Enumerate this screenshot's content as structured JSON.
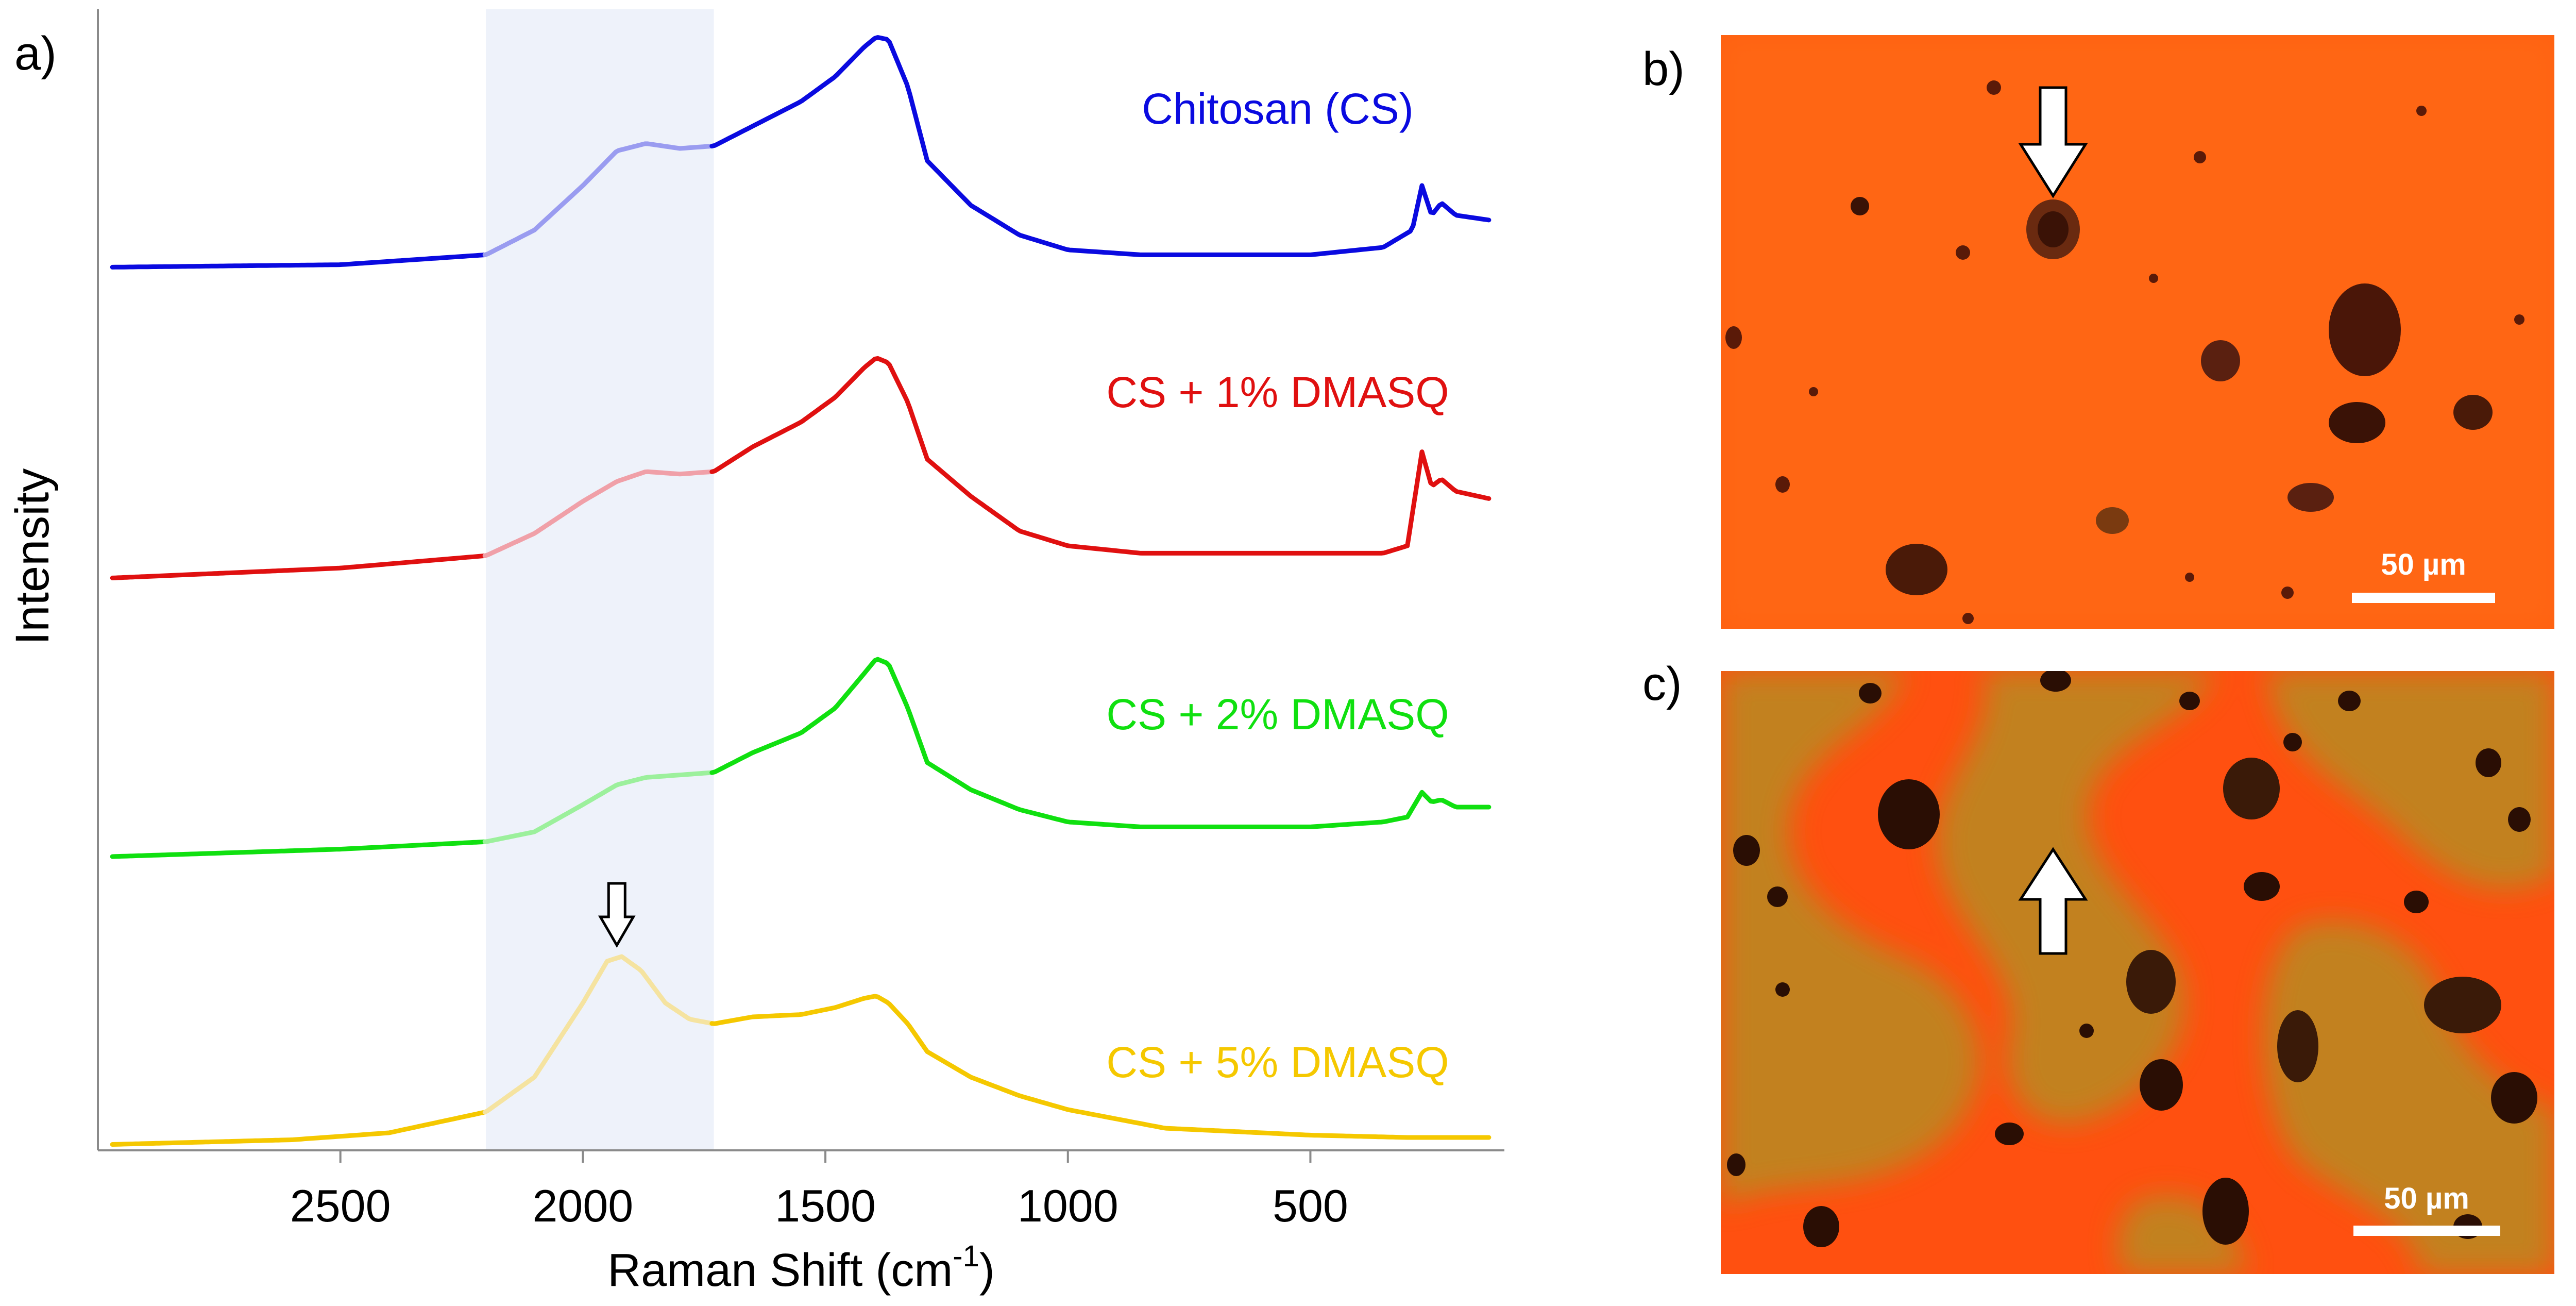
{
  "panel_labels": {
    "a": "a)",
    "b": "b)",
    "c": "c)"
  },
  "chart_data": {
    "type": "line",
    "title": "",
    "xlabel_main": "Raman Shift  (cm",
    "xlabel_sup": "-1",
    "xlabel_end": ")",
    "ylabel": "Intensity",
    "xlim": [
      3000,
      100
    ],
    "x_reversed": true,
    "y_ticks_shown": false,
    "xticks": [
      2500,
      2000,
      1500,
      1000,
      500
    ],
    "xtick_labels": [
      "2500",
      "2000",
      "1500",
      "1000",
      "500"
    ],
    "highlight_band": {
      "from": 2200,
      "to": 1730,
      "color": "#eef2fa"
    },
    "marker_arrow_x": 1930,
    "series": [
      {
        "name": "Chitosan (CS)",
        "color": "#0a0ae0",
        "light_color": "#9a9cf0",
        "points": [
          [
            2970,
            0.17
          ],
          [
            2500,
            0.18
          ],
          [
            2200,
            0.22
          ],
          [
            2100,
            0.32
          ],
          [
            2000,
            0.5
          ],
          [
            1930,
            0.64
          ],
          [
            1870,
            0.67
          ],
          [
            1800,
            0.65
          ],
          [
            1730,
            0.66
          ],
          [
            1650,
            0.74
          ],
          [
            1550,
            0.84
          ],
          [
            1480,
            0.94
          ],
          [
            1420,
            1.06
          ],
          [
            1395,
            1.1
          ],
          [
            1370,
            1.09
          ],
          [
            1330,
            0.9
          ],
          [
            1290,
            0.6
          ],
          [
            1200,
            0.42
          ],
          [
            1100,
            0.3
          ],
          [
            1000,
            0.24
          ],
          [
            850,
            0.22
          ],
          [
            500,
            0.22
          ],
          [
            350,
            0.25
          ],
          [
            290,
            0.32
          ],
          [
            270,
            0.5
          ],
          [
            250,
            0.38
          ],
          [
            230,
            0.43
          ],
          [
            200,
            0.38
          ],
          [
            130,
            0.36
          ]
        ]
      },
      {
        "name": "CS + 1% DMASQ",
        "color": "#e01010",
        "light_color": "#f0a0a8",
        "points": [
          [
            2970,
            0.07
          ],
          [
            2500,
            0.11
          ],
          [
            2200,
            0.16
          ],
          [
            2100,
            0.25
          ],
          [
            2000,
            0.38
          ],
          [
            1930,
            0.46
          ],
          [
            1870,
            0.5
          ],
          [
            1800,
            0.49
          ],
          [
            1730,
            0.5
          ],
          [
            1650,
            0.6
          ],
          [
            1550,
            0.7
          ],
          [
            1480,
            0.8
          ],
          [
            1420,
            0.92
          ],
          [
            1395,
            0.96
          ],
          [
            1370,
            0.94
          ],
          [
            1330,
            0.78
          ],
          [
            1290,
            0.55
          ],
          [
            1200,
            0.4
          ],
          [
            1100,
            0.26
          ],
          [
            1000,
            0.2
          ],
          [
            850,
            0.17
          ],
          [
            500,
            0.17
          ],
          [
            350,
            0.17
          ],
          [
            300,
            0.2
          ],
          [
            270,
            0.58
          ],
          [
            250,
            0.44
          ],
          [
            230,
            0.47
          ],
          [
            200,
            0.42
          ],
          [
            130,
            0.39
          ]
        ]
      },
      {
        "name": "CS + 2% DMASQ",
        "color": "#10e010",
        "light_color": "#9cf09c",
        "points": [
          [
            2970,
            0.1
          ],
          [
            2500,
            0.13
          ],
          [
            2200,
            0.16
          ],
          [
            2100,
            0.2
          ],
          [
            2000,
            0.31
          ],
          [
            1930,
            0.39
          ],
          [
            1870,
            0.42
          ],
          [
            1800,
            0.43
          ],
          [
            1730,
            0.44
          ],
          [
            1650,
            0.52
          ],
          [
            1550,
            0.6
          ],
          [
            1480,
            0.7
          ],
          [
            1420,
            0.84
          ],
          [
            1395,
            0.9
          ],
          [
            1370,
            0.88
          ],
          [
            1330,
            0.7
          ],
          [
            1290,
            0.48
          ],
          [
            1200,
            0.37
          ],
          [
            1100,
            0.29
          ],
          [
            1000,
            0.24
          ],
          [
            850,
            0.22
          ],
          [
            500,
            0.22
          ],
          [
            350,
            0.24
          ],
          [
            300,
            0.26
          ],
          [
            270,
            0.36
          ],
          [
            250,
            0.32
          ],
          [
            230,
            0.33
          ],
          [
            200,
            0.3
          ],
          [
            130,
            0.3
          ]
        ]
      },
      {
        "name": "CS + 5% DMASQ",
        "color": "#f5c800",
        "light_color": "#f5e3a0",
        "points": [
          [
            2970,
            0.01
          ],
          [
            2600,
            0.03
          ],
          [
            2400,
            0.06
          ],
          [
            2200,
            0.15
          ],
          [
            2100,
            0.3
          ],
          [
            2000,
            0.62
          ],
          [
            1950,
            0.8
          ],
          [
            1920,
            0.82
          ],
          [
            1880,
            0.76
          ],
          [
            1830,
            0.62
          ],
          [
            1780,
            0.55
          ],
          [
            1730,
            0.53
          ],
          [
            1650,
            0.56
          ],
          [
            1550,
            0.57
          ],
          [
            1480,
            0.6
          ],
          [
            1420,
            0.64
          ],
          [
            1395,
            0.65
          ],
          [
            1370,
            0.62
          ],
          [
            1330,
            0.53
          ],
          [
            1290,
            0.41
          ],
          [
            1200,
            0.3
          ],
          [
            1100,
            0.22
          ],
          [
            1000,
            0.16
          ],
          [
            800,
            0.08
          ],
          [
            500,
            0.05
          ],
          [
            300,
            0.04
          ],
          [
            130,
            0.04
          ]
        ]
      }
    ]
  },
  "micrographs": [
    {
      "panel": "b)",
      "scale_bar_label": "50 µm",
      "base_color": "#ff6010",
      "arrow_direction": "down"
    },
    {
      "panel": "c)",
      "scale_bar_label": "50 µm",
      "base_color": "#ff5010",
      "arrow_direction": "up"
    }
  ]
}
